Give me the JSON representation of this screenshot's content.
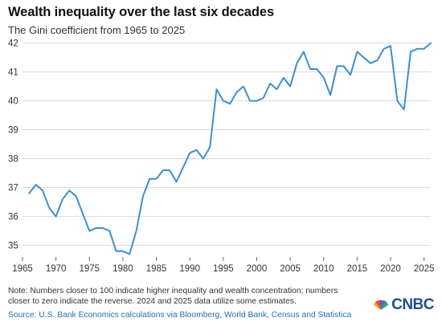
{
  "header": {
    "title": "Wealth inequality over the last six decades",
    "subtitle": "The Gini coefficient from 1965 to 2025"
  },
  "footer": {
    "note": "Note: Numbers closer to 100 indicate higher inequality and wealth concentration; numbers closer to zero indicate the reverse. 2024 and 2025 data utilize some estimates.",
    "source": "Source: U.S. Bank Economics calculations via Bloomberg, World Bank, Census and Statistica",
    "logo_text": "CNBC",
    "logo_icon": "peacock-icon"
  },
  "chart_data": {
    "type": "line",
    "title": "Wealth inequality over the last six decades",
    "subtitle": "The Gini coefficient from 1965 to 2025",
    "xlabel": "",
    "ylabel": "",
    "xlim": [
      1965,
      2026
    ],
    "ylim": [
      34.6,
      42.1
    ],
    "x_ticks": [
      1965,
      1970,
      1975,
      1980,
      1985,
      1990,
      1995,
      2000,
      2005,
      2010,
      2015,
      2020,
      2025
    ],
    "y_ticks": [
      35,
      36,
      37,
      38,
      39,
      40,
      41,
      42
    ],
    "grid": "horizontal",
    "legend": "none",
    "line_color": "#3d8fd0",
    "x": [
      1966,
      1967,
      1968,
      1969,
      1970,
      1971,
      1972,
      1973,
      1974,
      1975,
      1976,
      1977,
      1978,
      1979,
      1980,
      1981,
      1982,
      1983,
      1984,
      1985,
      1986,
      1987,
      1988,
      1989,
      1990,
      1991,
      1992,
      1993,
      1994,
      1995,
      1996,
      1997,
      1998,
      1999,
      2000,
      2001,
      2002,
      2003,
      2004,
      2005,
      2006,
      2007,
      2008,
      2009,
      2010,
      2011,
      2012,
      2013,
      2014,
      2015,
      2016,
      2017,
      2018,
      2019,
      2020,
      2021,
      2022,
      2023,
      2024,
      2025,
      2026
    ],
    "values": [
      36.8,
      37.1,
      36.9,
      36.3,
      36.0,
      36.6,
      36.9,
      36.7,
      36.1,
      35.5,
      35.6,
      35.6,
      35.5,
      34.8,
      34.8,
      34.7,
      35.5,
      36.7,
      37.3,
      37.3,
      37.6,
      37.6,
      37.2,
      37.7,
      38.2,
      38.3,
      38.0,
      38.4,
      40.4,
      40.0,
      39.9,
      40.3,
      40.5,
      40.0,
      40.0,
      40.1,
      40.6,
      40.4,
      40.8,
      40.5,
      41.3,
      41.7,
      41.1,
      41.1,
      40.8,
      40.2,
      41.2,
      41.2,
      40.9,
      41.7,
      41.5,
      41.3,
      41.4,
      41.8,
      41.9,
      40.0,
      39.7,
      41.7,
      41.8,
      41.8,
      42.0
    ]
  }
}
